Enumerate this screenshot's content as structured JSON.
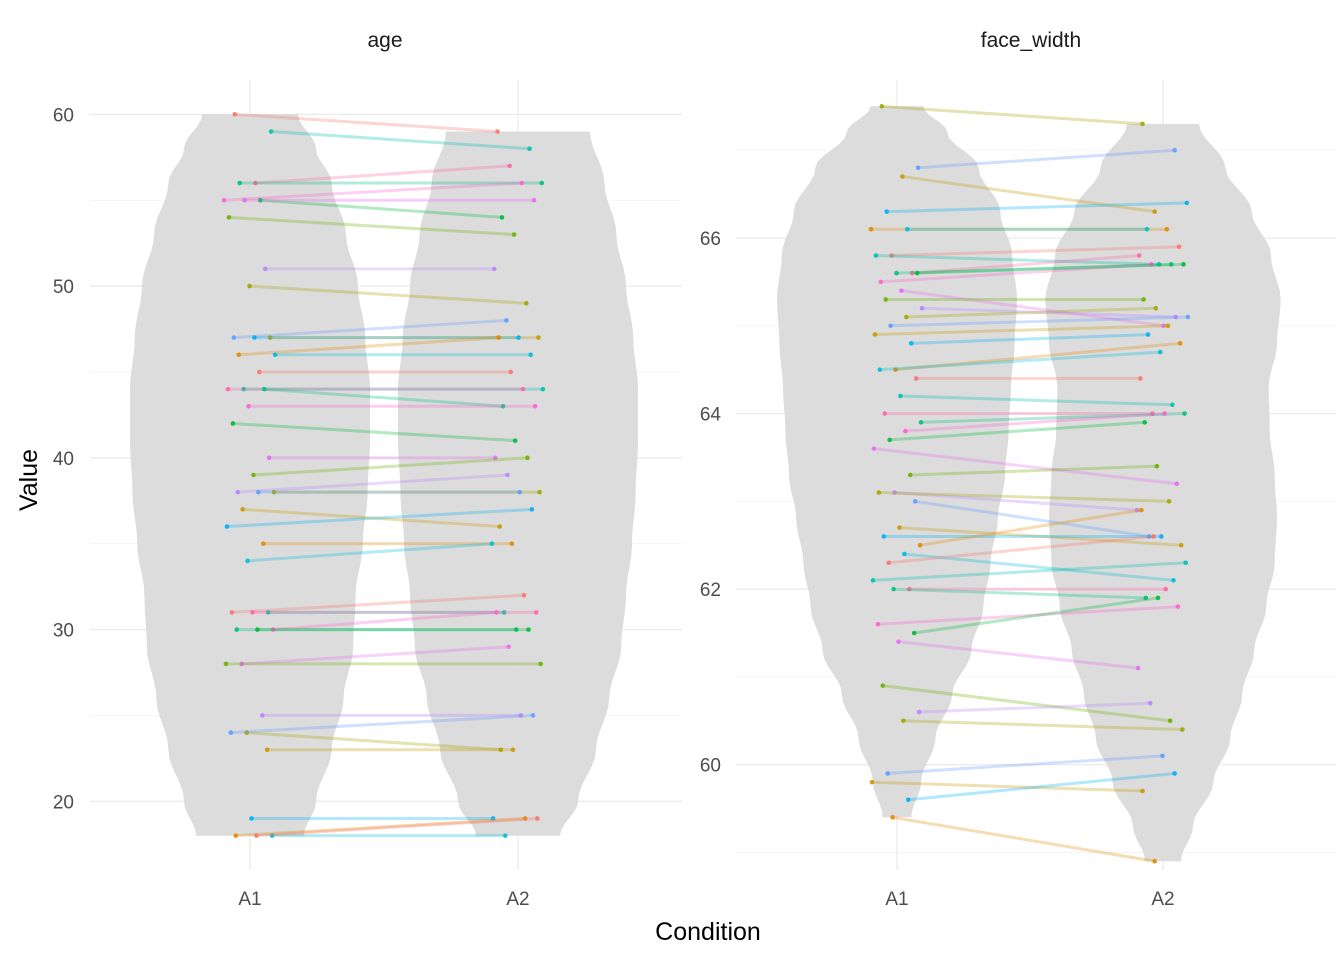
{
  "chart_data": {
    "type": "violin",
    "xlabel": "Condition",
    "ylabel": "Value",
    "categories": [
      "A1",
      "A2"
    ],
    "legend": "none",
    "grid": true,
    "colors": {
      "violin_fill": "#d9d9d9",
      "palette": [
        "#F8766D",
        "#E58700",
        "#C99800",
        "#A3A500",
        "#6BB100",
        "#00BA38",
        "#00BF7D",
        "#00C0AF",
        "#00BCD8",
        "#00B0F6",
        "#619CFF",
        "#B983FF",
        "#E76BF3",
        "#FD61D1",
        "#FF67A4"
      ]
    },
    "facets": [
      {
        "title": "age",
        "ylim": [
          16,
          62
        ],
        "yticks": [
          20,
          30,
          40,
          50,
          60
        ],
        "violins": [
          {
            "category": "A1",
            "min": 18,
            "max": 60,
            "density": [
              [
                18,
                0.45
              ],
              [
                20,
                0.55
              ],
              [
                23,
                0.68
              ],
              [
                26,
                0.78
              ],
              [
                29,
                0.86
              ],
              [
                32,
                0.88
              ],
              [
                35,
                0.94
              ],
              [
                38,
                0.98
              ],
              [
                41,
                1.0
              ],
              [
                44,
                1.0
              ],
              [
                47,
                0.96
              ],
              [
                50,
                0.9
              ],
              [
                53,
                0.8
              ],
              [
                56,
                0.68
              ],
              [
                58,
                0.55
              ],
              [
                60,
                0.4
              ]
            ]
          },
          {
            "category": "A2",
            "min": 18,
            "max": 59,
            "density": [
              [
                18,
                0.35
              ],
              [
                20,
                0.5
              ],
              [
                23,
                0.65
              ],
              [
                26,
                0.76
              ],
              [
                29,
                0.86
              ],
              [
                32,
                0.9
              ],
              [
                35,
                0.95
              ],
              [
                38,
                0.98
              ],
              [
                41,
                1.0
              ],
              [
                44,
                1.0
              ],
              [
                47,
                0.96
              ],
              [
                50,
                0.9
              ],
              [
                53,
                0.82
              ],
              [
                56,
                0.72
              ],
              [
                59,
                0.6
              ]
            ]
          }
        ],
        "pairs": [
          {
            "a1": 60,
            "a2": 59
          },
          {
            "a1": 59,
            "a2": 58
          },
          {
            "a1": 56,
            "a2": 57
          },
          {
            "a1": 56,
            "a2": 56
          },
          {
            "a1": 55,
            "a2": 56
          },
          {
            "a1": 55,
            "a2": 54
          },
          {
            "a1": 55,
            "a2": 55
          },
          {
            "a1": 54,
            "a2": 53
          },
          {
            "a1": 51,
            "a2": 51
          },
          {
            "a1": 50,
            "a2": 49
          },
          {
            "a1": 47,
            "a2": 48
          },
          {
            "a1": 47,
            "a2": 47
          },
          {
            "a1": 47,
            "a2": 47
          },
          {
            "a1": 46,
            "a2": 47
          },
          {
            "a1": 46,
            "a2": 46
          },
          {
            "a1": 45,
            "a2": 45
          },
          {
            "a1": 44,
            "a2": 44
          },
          {
            "a1": 44,
            "a2": 44
          },
          {
            "a1": 44,
            "a2": 43
          },
          {
            "a1": 43,
            "a2": 43
          },
          {
            "a1": 42,
            "a2": 41
          },
          {
            "a1": 40,
            "a2": 40
          },
          {
            "a1": 39,
            "a2": 40
          },
          {
            "a1": 38,
            "a2": 39
          },
          {
            "a1": 38,
            "a2": 38
          },
          {
            "a1": 38,
            "a2": 38
          },
          {
            "a1": 37,
            "a2": 36
          },
          {
            "a1": 36,
            "a2": 37
          },
          {
            "a1": 35,
            "a2": 35
          },
          {
            "a1": 34,
            "a2": 35
          },
          {
            "a1": 31,
            "a2": 32
          },
          {
            "a1": 31,
            "a2": 31
          },
          {
            "a1": 31,
            "a2": 31
          },
          {
            "a1": 30,
            "a2": 30
          },
          {
            "a1": 30,
            "a2": 31
          },
          {
            "a1": 30,
            "a2": 30
          },
          {
            "a1": 28,
            "a2": 29
          },
          {
            "a1": 28,
            "a2": 28
          },
          {
            "a1": 25,
            "a2": 25
          },
          {
            "a1": 24,
            "a2": 23
          },
          {
            "a1": 24,
            "a2": 25
          },
          {
            "a1": 23,
            "a2": 23
          },
          {
            "a1": 19,
            "a2": 19
          },
          {
            "a1": 18,
            "a2": 19
          },
          {
            "a1": 18,
            "a2": 18
          },
          {
            "a1": 18,
            "a2": 19
          }
        ]
      },
      {
        "title": "face_width",
        "ylim": [
          58.8,
          67.8
        ],
        "yticks": [
          60,
          62,
          64,
          66
        ],
        "violins": [
          {
            "category": "A1",
            "min": 59.4,
            "max": 67.5,
            "density": [
              [
                59.4,
                0.12
              ],
              [
                59.8,
                0.2
              ],
              [
                60.3,
                0.32
              ],
              [
                60.8,
                0.46
              ],
              [
                61.3,
                0.62
              ],
              [
                61.8,
                0.72
              ],
              [
                62.3,
                0.78
              ],
              [
                62.8,
                0.84
              ],
              [
                63.3,
                0.9
              ],
              [
                63.8,
                0.93
              ],
              [
                64.3,
                0.95
              ],
              [
                64.8,
                0.98
              ],
              [
                65.3,
                1.0
              ],
              [
                65.8,
                0.96
              ],
              [
                66.3,
                0.86
              ],
              [
                66.8,
                0.68
              ],
              [
                67.2,
                0.42
              ],
              [
                67.5,
                0.22
              ]
            ]
          },
          {
            "category": "A2",
            "min": 58.9,
            "max": 67.3,
            "density": [
              [
                58.9,
                0.15
              ],
              [
                59.3,
                0.25
              ],
              [
                59.8,
                0.42
              ],
              [
                60.3,
                0.56
              ],
              [
                60.8,
                0.66
              ],
              [
                61.3,
                0.76
              ],
              [
                61.8,
                0.86
              ],
              [
                62.3,
                0.93
              ],
              [
                62.8,
                0.95
              ],
              [
                63.3,
                0.93
              ],
              [
                63.8,
                0.89
              ],
              [
                64.3,
                0.88
              ],
              [
                64.8,
                0.95
              ],
              [
                65.3,
                0.98
              ],
              [
                65.8,
                0.9
              ],
              [
                66.3,
                0.74
              ],
              [
                66.8,
                0.52
              ],
              [
                67.3,
                0.3
              ]
            ]
          }
        ],
        "pairs": [
          {
            "a1": 67.5,
            "a2": 67.3
          },
          {
            "a1": 66.8,
            "a2": 67.0
          },
          {
            "a1": 66.7,
            "a2": 66.3
          },
          {
            "a1": 66.3,
            "a2": 66.4
          },
          {
            "a1": 66.1,
            "a2": 66.1
          },
          {
            "a1": 66.1,
            "a2": 66.1
          },
          {
            "a1": 65.8,
            "a2": 65.9
          },
          {
            "a1": 65.8,
            "a2": 65.7
          },
          {
            "a1": 65.6,
            "a2": 65.8
          },
          {
            "a1": 65.6,
            "a2": 65.7
          },
          {
            "a1": 65.5,
            "a2": 65.7
          },
          {
            "a1": 65.6,
            "a2": 65.7
          },
          {
            "a1": 65.4,
            "a2": 65.0
          },
          {
            "a1": 65.3,
            "a2": 65.3
          },
          {
            "a1": 65.2,
            "a2": 65.1
          },
          {
            "a1": 65.1,
            "a2": 65.2
          },
          {
            "a1": 65.0,
            "a2": 65.1
          },
          {
            "a1": 64.9,
            "a2": 65.0
          },
          {
            "a1": 64.8,
            "a2": 64.9
          },
          {
            "a1": 64.5,
            "a2": 64.8
          },
          {
            "a1": 64.5,
            "a2": 64.7
          },
          {
            "a1": 64.4,
            "a2": 64.4
          },
          {
            "a1": 64.2,
            "a2": 64.1
          },
          {
            "a1": 64.0,
            "a2": 64.0
          },
          {
            "a1": 63.9,
            "a2": 64.0
          },
          {
            "a1": 63.8,
            "a2": 64.0
          },
          {
            "a1": 63.7,
            "a2": 63.9
          },
          {
            "a1": 63.6,
            "a2": 63.2
          },
          {
            "a1": 63.3,
            "a2": 63.4
          },
          {
            "a1": 63.1,
            "a2": 62.9
          },
          {
            "a1": 63.1,
            "a2": 63.0
          },
          {
            "a1": 63.0,
            "a2": 62.6
          },
          {
            "a1": 62.7,
            "a2": 62.5
          },
          {
            "a1": 62.6,
            "a2": 62.6
          },
          {
            "a1": 62.5,
            "a2": 62.9
          },
          {
            "a1": 62.4,
            "a2": 62.1
          },
          {
            "a1": 62.3,
            "a2": 62.6
          },
          {
            "a1": 62.1,
            "a2": 62.3
          },
          {
            "a1": 62.0,
            "a2": 62.0
          },
          {
            "a1": 62.0,
            "a2": 61.9
          },
          {
            "a1": 61.6,
            "a2": 61.8
          },
          {
            "a1": 61.5,
            "a2": 61.9
          },
          {
            "a1": 61.4,
            "a2": 61.1
          },
          {
            "a1": 60.9,
            "a2": 60.5
          },
          {
            "a1": 60.6,
            "a2": 60.7
          },
          {
            "a1": 60.5,
            "a2": 60.4
          },
          {
            "a1": 59.9,
            "a2": 60.1
          },
          {
            "a1": 59.8,
            "a2": 59.7
          },
          {
            "a1": 59.6,
            "a2": 59.9
          },
          {
            "a1": 59.4,
            "a2": 58.9
          }
        ]
      }
    ]
  }
}
